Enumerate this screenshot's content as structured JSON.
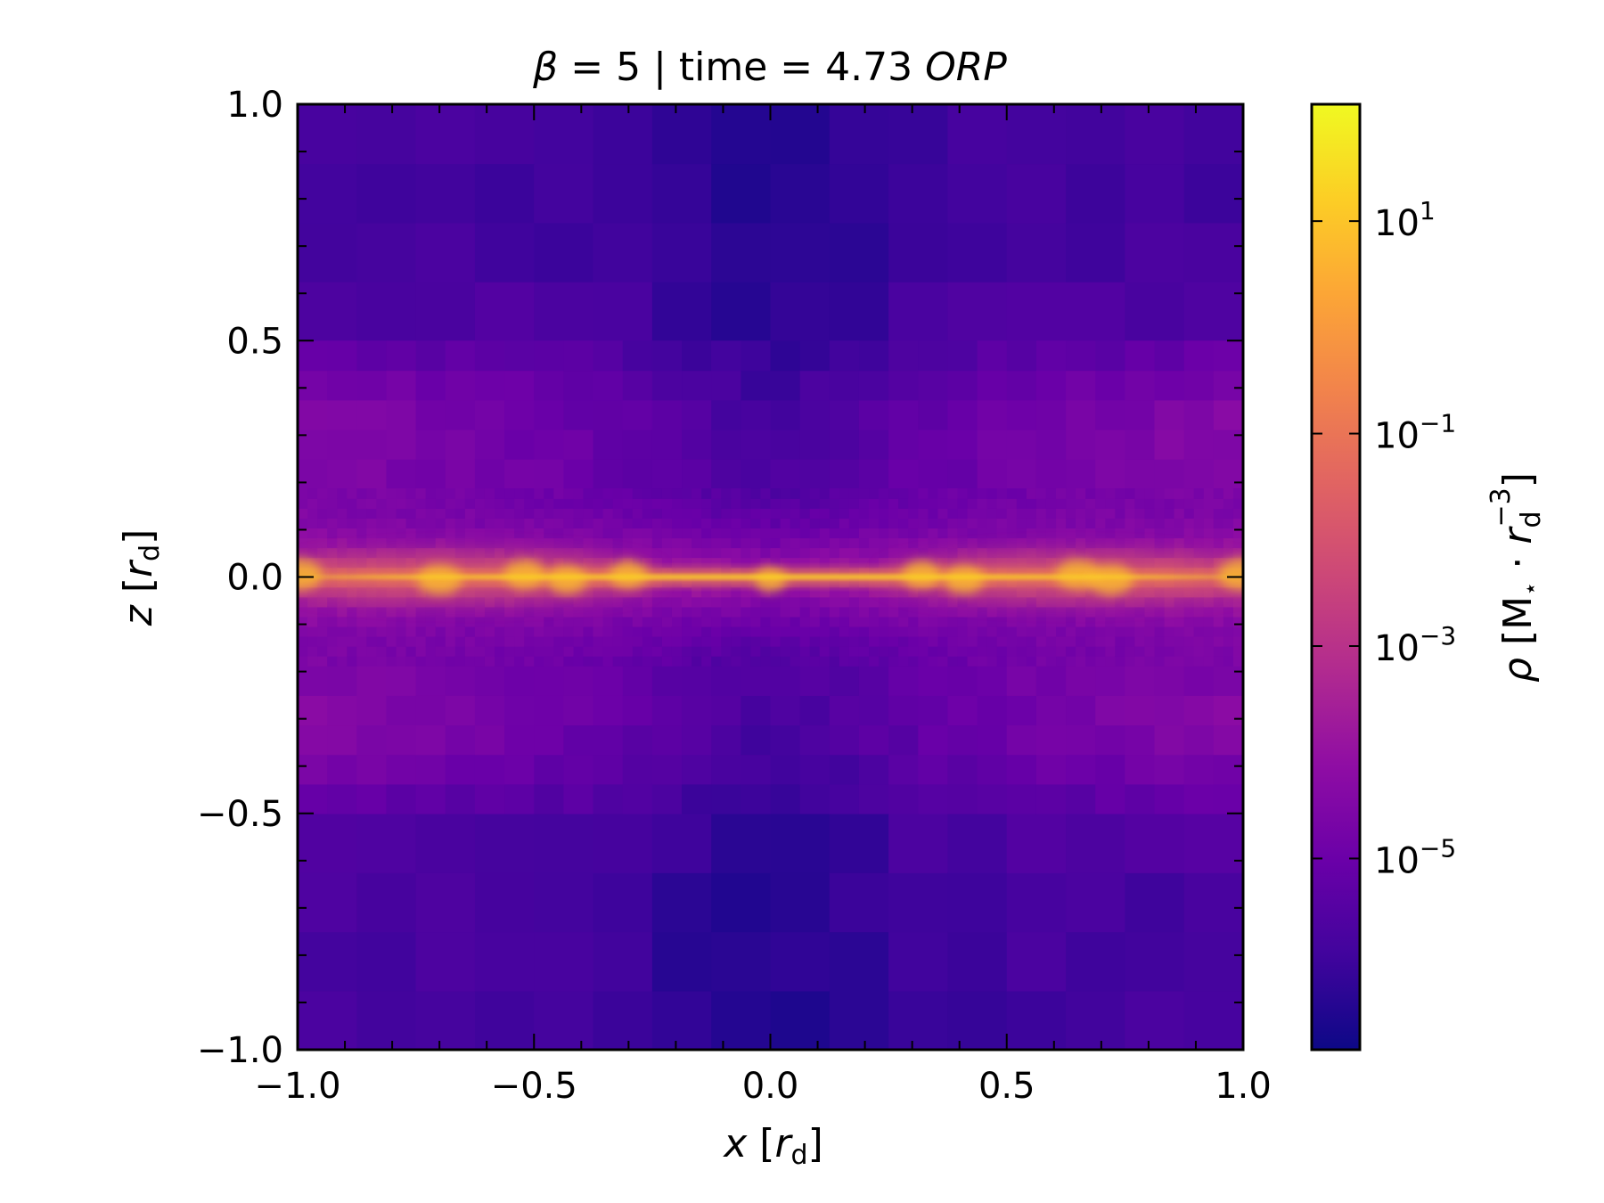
{
  "chart_data": {
    "type": "heatmap",
    "title": {
      "symbol": "β",
      "prefix": " = 5 | time = 4.73 ",
      "unit": "ORP"
    },
    "xaxis": {
      "var": "x",
      "unit_sym": "r",
      "unit_sub": "d",
      "range": [
        -1.0,
        1.0
      ],
      "ticks": [
        -1.0,
        -0.5,
        0.0,
        0.5,
        1.0
      ],
      "ticklabels": [
        "−1.0",
        "−0.5",
        "0.0",
        "0.5",
        "1.0"
      ]
    },
    "yaxis": {
      "var": "z",
      "unit_sym": "r",
      "unit_sub": "d",
      "range": [
        -1.0,
        1.0
      ],
      "ticks": [
        -1.0,
        -0.5,
        0.0,
        0.5,
        1.0
      ],
      "ticklabels": [
        "−1.0",
        "−0.5",
        "0.0",
        "0.5",
        "1.0"
      ]
    },
    "colorbar": {
      "scale": "log",
      "colormap": "plasma",
      "range_log10": [
        -6.8,
        2.1
      ],
      "major_ticks_log10": [
        1,
        -1,
        -3,
        -5
      ],
      "ticklabels": [
        {
          "base": "10",
          "exp": "1"
        },
        {
          "base": "10",
          "exp": "−1"
        },
        {
          "base": "10",
          "exp": "−3"
        },
        {
          "base": "10",
          "exp": "−5"
        }
      ],
      "label": {
        "symbol": "ρ",
        "bracket_open": " [M",
        "star": "⋆",
        "dot": " · ",
        "r": "r",
        "r_sub": "d",
        "r_sup": "−3",
        "bracket_close": "]"
      }
    },
    "field": {
      "description_levels_log10": {
        "midplane_peak": 1.3,
        "background_min": -6.2
      },
      "bright_clumps_x": [
        -1.0,
        -0.7,
        -0.52,
        -0.43,
        -0.3,
        0.0,
        0.32,
        0.41,
        0.65,
        0.72,
        1.0
      ]
    }
  }
}
